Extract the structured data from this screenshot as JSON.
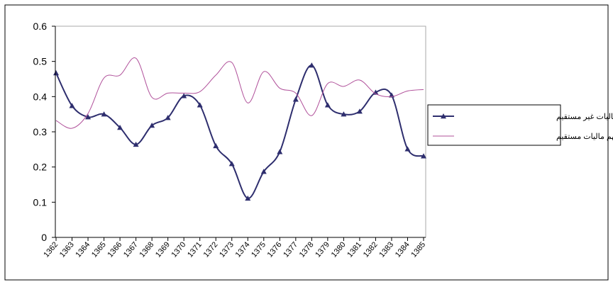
{
  "chart_data": {
    "type": "line",
    "categories": [
      "1362",
      "1363",
      "1364",
      "1365",
      "1366",
      "1367",
      "1368",
      "1369",
      "1370",
      "1371",
      "1372",
      "1373",
      "1374",
      "1375",
      "1376",
      "1377",
      "1378",
      "1379",
      "1380",
      "1381",
      "1382",
      "1383",
      "1384",
      "1385"
    ],
    "series": [
      {
        "name": "سهم ماليات غير مستقيم",
        "color": "#2e2e6e",
        "marker": "triangle",
        "values": [
          0.467,
          0.374,
          0.342,
          0.35,
          0.312,
          0.264,
          0.318,
          0.34,
          0.402,
          0.376,
          0.26,
          0.209,
          0.111,
          0.187,
          0.243,
          0.392,
          0.489,
          0.376,
          0.35,
          0.358,
          0.412,
          0.404,
          0.251,
          0.231
        ]
      },
      {
        "name": "سهم ماليات مستقيم",
        "color": "#b0509a",
        "values": [
          0.332,
          0.31,
          0.352,
          0.453,
          0.461,
          0.509,
          0.398,
          0.41,
          0.41,
          0.414,
          0.461,
          0.497,
          0.382,
          0.471,
          0.424,
          0.41,
          0.346,
          0.437,
          0.429,
          0.447,
          0.408,
          0.4,
          0.416,
          0.42
        ]
      }
    ],
    "ylim": [
      0,
      0.6
    ],
    "yticks": [
      0,
      0.1,
      0.2,
      0.3,
      0.4,
      0.5,
      0.6
    ],
    "grid": false,
    "legend": "right"
  }
}
